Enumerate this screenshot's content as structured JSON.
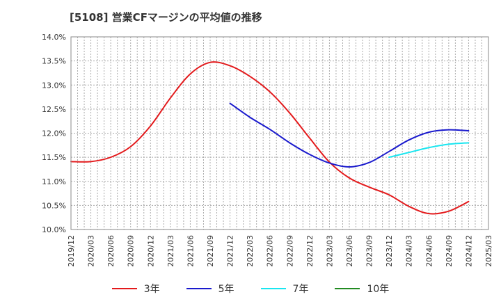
{
  "title": "[5108]  営業CFマージンの平均値の推移",
  "chart_data": {
    "type": "line",
    "title": "[5108]  営業CFマージンの平均値の推移",
    "xlabel": "",
    "ylabel": "",
    "x": [
      "2019/12",
      "2020/03",
      "2020/06",
      "2020/09",
      "2020/12",
      "2021/03",
      "2021/06",
      "2021/09",
      "2021/12",
      "2022/03",
      "2022/06",
      "2022/09",
      "2022/12",
      "2023/03",
      "2023/06",
      "2023/09",
      "2023/12",
      "2024/03",
      "2024/06",
      "2024/09",
      "2024/12",
      "2025/03"
    ],
    "y_ticks": [
      "10.0%",
      "10.5%",
      "11.0%",
      "11.5%",
      "12.0%",
      "12.5%",
      "13.0%",
      "13.5%",
      "14.0%"
    ],
    "ylim": [
      10.0,
      14.0
    ],
    "grid": true,
    "legend_position": "bottom",
    "series": [
      {
        "name": "3年",
        "color": "#e31a1c",
        "values": [
          11.41,
          11.41,
          11.5,
          11.72,
          12.15,
          12.73,
          13.23,
          13.47,
          13.4,
          13.18,
          12.86,
          12.42,
          11.9,
          11.4,
          11.07,
          10.88,
          10.72,
          10.48,
          10.33,
          10.38,
          10.58,
          null
        ]
      },
      {
        "name": "5年",
        "color": "#1a1acd",
        "values": [
          null,
          null,
          null,
          null,
          null,
          null,
          null,
          null,
          12.62,
          12.33,
          12.08,
          11.8,
          11.56,
          11.38,
          11.3,
          11.39,
          11.62,
          11.86,
          12.02,
          12.07,
          12.05,
          null
        ]
      },
      {
        "name": "7年",
        "color": "#19e6f0",
        "values": [
          null,
          null,
          null,
          null,
          null,
          null,
          null,
          null,
          null,
          null,
          null,
          null,
          null,
          null,
          null,
          null,
          11.5,
          11.6,
          11.7,
          11.77,
          11.8,
          null
        ]
      },
      {
        "name": "10年",
        "color": "#228b22",
        "values": [
          null,
          null,
          null,
          null,
          null,
          null,
          null,
          null,
          null,
          null,
          null,
          null,
          null,
          null,
          null,
          null,
          null,
          null,
          null,
          null,
          null,
          null
        ]
      }
    ]
  }
}
